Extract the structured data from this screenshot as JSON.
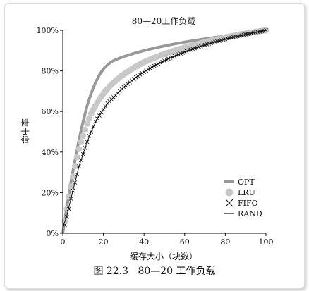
{
  "figure_caption": {
    "number": "图 22.3",
    "title": "80—20 工作负载"
  },
  "chart_data": {
    "type": "line",
    "title": "80—20工作负载",
    "xlabel": "缓存大小（块数）",
    "ylabel": "命中率",
    "xlim": [
      0,
      100
    ],
    "ylim": [
      0,
      100
    ],
    "x_ticks": [
      "0",
      "20",
      "40",
      "60",
      "80",
      "100"
    ],
    "y_ticks": [
      "0%",
      "20%",
      "40%",
      "60%",
      "80%",
      "100%"
    ],
    "legend_placement": "bottom-right",
    "grid": false,
    "series": [
      {
        "name": "OPT",
        "style": "thick-line",
        "color": "#999999",
        "x": [
          0,
          2,
          4,
          6,
          8,
          10,
          12,
          14,
          16,
          18,
          20,
          22,
          24,
          26,
          28,
          30,
          35,
          40,
          45,
          50,
          55,
          60,
          65,
          70,
          75,
          80,
          85,
          90,
          95,
          100
        ],
        "y": [
          0,
          13,
          25,
          36,
          46,
          55,
          63,
          69,
          74,
          78,
          81,
          83,
          84.5,
          85.5,
          86.3,
          87,
          88.6,
          90,
          91.2,
          92.3,
          93.3,
          94.2,
          95,
          95.8,
          96.5,
          97.2,
          97.9,
          98.6,
          99.3,
          100
        ]
      },
      {
        "name": "LRU",
        "style": "dots",
        "color": "#c8c8c8",
        "x": [
          1,
          2,
          3,
          4,
          5,
          6,
          7,
          8,
          9,
          10,
          11,
          12,
          13,
          14,
          15,
          16,
          17,
          18,
          19,
          20,
          21,
          22,
          23,
          24,
          25,
          26,
          27,
          28,
          29,
          30,
          31,
          32,
          33,
          34,
          35,
          36,
          37,
          38,
          39,
          40,
          41,
          42,
          43,
          44,
          45,
          46,
          47,
          48,
          49,
          50,
          51,
          52,
          53,
          54,
          55,
          56,
          57,
          58,
          59,
          60,
          61,
          62,
          63,
          64,
          65,
          66,
          67,
          68,
          69,
          70,
          71,
          72,
          73,
          74,
          75,
          76,
          77,
          78,
          79,
          80,
          81,
          82,
          83,
          84,
          85,
          86,
          87,
          88,
          89,
          90,
          91,
          92,
          93,
          94,
          95,
          96,
          97,
          98,
          99,
          100
        ],
        "y": [
          6,
          12,
          18,
          23,
          28,
          33,
          37.5,
          41.5,
          45,
          48,
          51,
          54,
          56.5,
          59,
          61,
          62.8,
          64.5,
          66,
          67.4,
          68.8,
          70,
          71.2,
          72.3,
          73.3,
          74.2,
          75.1,
          76,
          76.8,
          77.6,
          78.3,
          79,
          79.7,
          80.3,
          81,
          81.6,
          82.2,
          82.7,
          83.3,
          83.8,
          84.3,
          84.7,
          85.2,
          85.6,
          86,
          86.4,
          86.8,
          87.2,
          87.6,
          88,
          88.3,
          88.7,
          89,
          89.3,
          89.7,
          90,
          90.3,
          90.6,
          90.9,
          91.2,
          91.5,
          91.8,
          92.1,
          92.3,
          92.6,
          92.9,
          93.1,
          93.4,
          93.7,
          93.9,
          94.2,
          94.4,
          94.7,
          94.9,
          95.1,
          95.4,
          95.6,
          95.8,
          96,
          96.3,
          96.5,
          96.7,
          96.9,
          97.1,
          97.3,
          97.5,
          97.7,
          97.9,
          98.1,
          98.3,
          98.4,
          98.6,
          98.8,
          99,
          99.1,
          99.3,
          99.4,
          99.6,
          99.7,
          99.9,
          100
        ]
      },
      {
        "name": "FIFO",
        "style": "crosses",
        "color": "#111111",
        "x": [
          1,
          2,
          3,
          4,
          5,
          6,
          7,
          8,
          9,
          10,
          11,
          12,
          13,
          14,
          15,
          16,
          17,
          18,
          19,
          20,
          21,
          22,
          23,
          24,
          25,
          26,
          27,
          28,
          29,
          30,
          31,
          32,
          33,
          34,
          35,
          36,
          37,
          38,
          39,
          40,
          41,
          42,
          43,
          44,
          45,
          46,
          47,
          48,
          49,
          50,
          51,
          52,
          53,
          54,
          55,
          56,
          57,
          58,
          59,
          60,
          61,
          62,
          63,
          64,
          65,
          66,
          67,
          68,
          69,
          70,
          71,
          72,
          73,
          74,
          75,
          76,
          77,
          78,
          79,
          80,
          81,
          82,
          83,
          84,
          85,
          86,
          87,
          88,
          89,
          90,
          91,
          92,
          93,
          94,
          95,
          96,
          97,
          98,
          99,
          100
        ],
        "y": [
          4,
          8,
          12,
          17,
          21,
          25,
          29,
          33,
          36,
          39,
          42,
          45,
          48,
          50,
          52.5,
          55,
          56.5,
          58,
          59.5,
          61,
          62.5,
          64,
          65,
          66,
          67,
          68,
          69,
          70,
          71,
          72,
          72.8,
          73.6,
          74.4,
          75.2,
          76,
          76.8,
          77.5,
          78.2,
          78.9,
          79.5,
          80.1,
          80.7,
          81.3,
          81.9,
          82.5,
          83,
          83.5,
          84,
          84.5,
          85,
          85.5,
          86,
          86.4,
          86.8,
          87.3,
          87.7,
          88.1,
          88.5,
          88.9,
          89.3,
          89.7,
          90.1,
          90.4,
          90.8,
          91.1,
          91.5,
          91.8,
          92.1,
          92.5,
          92.8,
          93.1,
          93.4,
          93.7,
          94,
          94.3,
          94.6,
          94.8,
          95.1,
          95.4,
          95.6,
          95.9,
          96.1,
          96.4,
          96.6,
          96.9,
          97.1,
          97.3,
          97.5,
          97.8,
          98,
          98.2,
          98.4,
          98.6,
          98.8,
          99,
          99.2,
          99.4,
          99.6,
          99.8,
          100
        ]
      },
      {
        "name": "RAND",
        "style": "thin-line",
        "color": "#111111",
        "x": [
          0,
          2,
          4,
          6,
          8,
          10,
          12,
          14,
          16,
          18,
          20,
          22,
          24,
          26,
          28,
          30,
          35,
          40,
          45,
          50,
          55,
          60,
          65,
          70,
          75,
          80,
          85,
          90,
          95,
          100
        ],
        "y": [
          3,
          8.5,
          17,
          25,
          33,
          39,
          45,
          50,
          54.5,
          58,
          61,
          64,
          66,
          68,
          70,
          72,
          76,
          79.5,
          82.5,
          85,
          87.3,
          89.3,
          91,
          92.8,
          94.2,
          95.6,
          96.8,
          97.9,
          99,
          100
        ]
      }
    ]
  }
}
